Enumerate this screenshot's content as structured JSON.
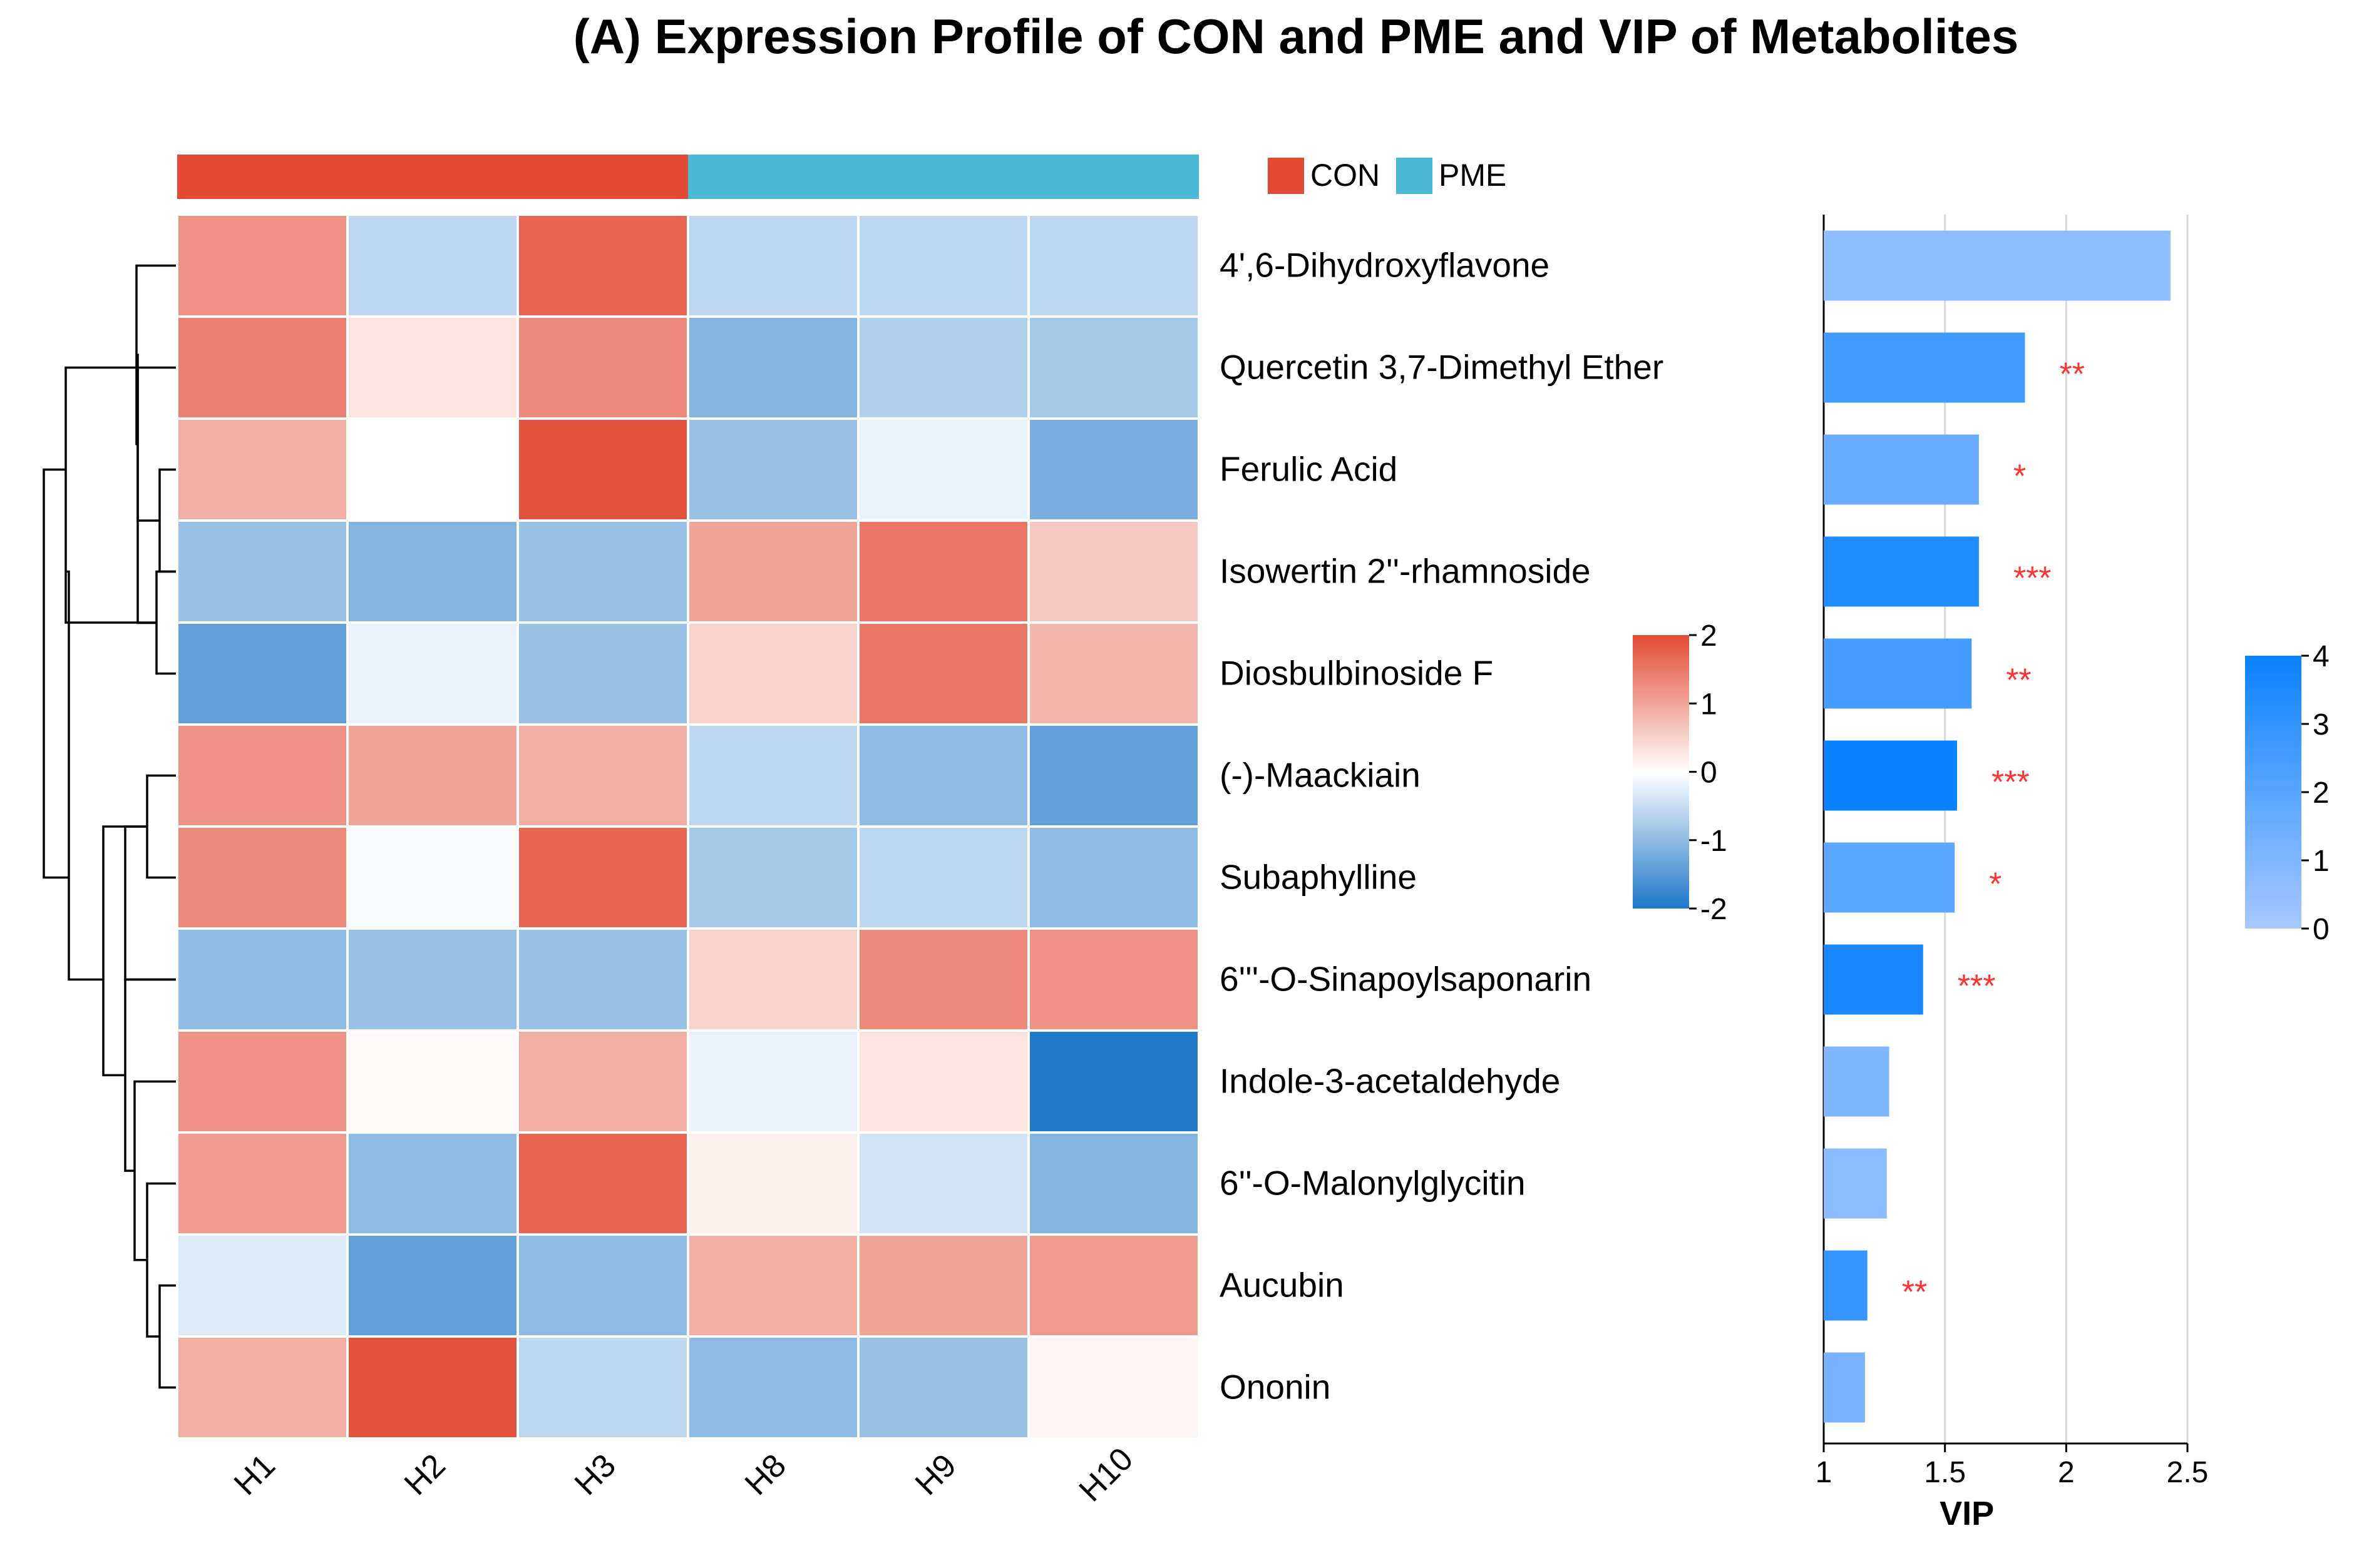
{
  "chart_data": {
    "title": "(A) Expression Profile of CON and PME and VIP of Metabolites",
    "heatmap": {
      "type": "heatmap",
      "samples": [
        "H1",
        "H2",
        "H3",
        "H8",
        "H9",
        "H10"
      ],
      "groups": [
        {
          "name": "CON",
          "color": "#e34a33",
          "samples": [
            "H1",
            "H2",
            "H3"
          ]
        },
        {
          "name": "PME",
          "color": "#4ab9d4",
          "samples": [
            "H8",
            "H9",
            "H10"
          ]
        }
      ],
      "metabolites": [
        "4',6-Dihydroxyflavone",
        "Quercetin 3,7-Dimethyl Ether",
        "Ferulic Acid",
        "Isowertin 2''-rhamnoside",
        "Diosbulbinoside F",
        "(-)-Maackiain",
        "Subaphylline",
        "6'''-O-Sinapoylsaponarin",
        "Indole-3-acetaldehyde",
        "6''-O-Malonylglycitin",
        "Aucubin",
        "Ononin"
      ],
      "values": [
        [
          1.2,
          -0.6,
          1.7,
          -0.6,
          -0.6,
          -0.6
        ],
        [
          1.4,
          0.3,
          1.3,
          -1.1,
          -0.7,
          -0.8
        ],
        [
          0.9,
          0.0,
          1.9,
          -0.9,
          -0.2,
          -1.2
        ],
        [
          -0.9,
          -1.1,
          -0.9,
          1.0,
          1.5,
          0.6
        ],
        [
          -1.4,
          -0.2,
          -0.9,
          0.5,
          1.5,
          0.8
        ],
        [
          1.2,
          1.0,
          0.9,
          -0.6,
          -1.0,
          -1.4
        ],
        [
          1.3,
          -0.05,
          1.7,
          -0.8,
          -0.6,
          -1.0
        ],
        [
          -1.0,
          -0.9,
          -0.9,
          0.5,
          1.3,
          1.2
        ],
        [
          1.2,
          0.05,
          0.9,
          -0.2,
          0.3,
          -2.0
        ],
        [
          1.1,
          -1.0,
          1.7,
          0.15,
          -0.4,
          -1.1
        ],
        [
          -0.3,
          -1.4,
          -1.0,
          0.9,
          1.0,
          1.1
        ],
        [
          0.9,
          1.9,
          -0.6,
          -1.0,
          -0.9,
          0.1
        ]
      ],
      "colorbar": {
        "min": -2,
        "max": 2,
        "ticks": [
          "2",
          "1",
          "0",
          "-1",
          "-2"
        ],
        "colors": [
          "#1f78c8",
          "#ffffff",
          "#e34a33"
        ]
      }
    },
    "vip": {
      "type": "bar",
      "orientation": "horizontal",
      "xlabel": "VIP",
      "xlim": [
        1,
        2.5
      ],
      "xticks": [
        "1",
        "1.5",
        "2",
        "2.5"
      ],
      "values": [
        2.43,
        1.83,
        1.64,
        1.64,
        1.61,
        1.55,
        1.54,
        1.41,
        1.27,
        1.26,
        1.18,
        1.17
      ],
      "significance": [
        "",
        "**",
        "*",
        "***",
        "**",
        "***",
        "*",
        "***",
        "",
        "",
        "**",
        ""
      ],
      "color_values": [
        0.6,
        2.6,
        1.6,
        3.5,
        2.5,
        4.0,
        1.9,
        3.6,
        1.0,
        0.7,
        2.9,
        1.2
      ],
      "colorbar": {
        "min": 0,
        "max": 4,
        "ticks": [
          "4",
          "3",
          "2",
          "1",
          "0"
        ],
        "colors": [
          "#a7c8ff",
          "#0a82ff"
        ]
      },
      "significance_color": "#ff3333"
    }
  }
}
